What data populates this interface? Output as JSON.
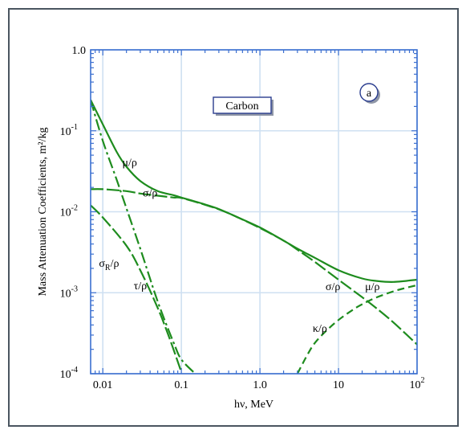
{
  "chart_data": {
    "type": "line",
    "title_box": "Carbon",
    "panel_label": "a",
    "xlabel": "hν, MeV",
    "ylabel": "Mass Attenuation Coefficients, m²/kg",
    "x_scale": "log",
    "y_scale": "log",
    "xlim": [
      0.007,
      100
    ],
    "ylim": [
      0.0001,
      1.0
    ],
    "grid": true,
    "x_ticks": [
      {
        "value": 0.01,
        "label": "0.01"
      },
      {
        "value": 0.1,
        "label": "0.1"
      },
      {
        "value": 1,
        "label": "1.0"
      },
      {
        "value": 10,
        "label": "10"
      },
      {
        "value": 100,
        "label": "10",
        "sup": "2"
      }
    ],
    "y_ticks": [
      {
        "value": 1.0,
        "label": "1.0",
        "sup": ""
      },
      {
        "value": 0.1,
        "label": "10",
        "sup": "-1"
      },
      {
        "value": 0.01,
        "label": "10",
        "sup": "-2"
      },
      {
        "value": 0.001,
        "label": "10",
        "sup": "-3"
      },
      {
        "value": 0.0001,
        "label": "10",
        "sup": "-4"
      }
    ],
    "series": [
      {
        "name": "μ/ρ",
        "style": "solid",
        "x": [
          0.007,
          0.01,
          0.015,
          0.02,
          0.03,
          0.05,
          0.08,
          0.1,
          0.2,
          0.3,
          0.5,
          1,
          2,
          3,
          5,
          10,
          20,
          30,
          50,
          100
        ],
        "y": [
          0.24,
          0.12,
          0.055,
          0.036,
          0.024,
          0.018,
          0.016,
          0.015,
          0.0123,
          0.0108,
          0.0087,
          0.0064,
          0.0044,
          0.0035,
          0.0027,
          0.0019,
          0.0015,
          0.0014,
          0.00136,
          0.00145
        ]
      },
      {
        "name": "σ/ρ",
        "style": "long-dash",
        "x": [
          0.007,
          0.01,
          0.02,
          0.03,
          0.05,
          0.08,
          0.1,
          0.2,
          0.3,
          0.5,
          1,
          2,
          3,
          5,
          10,
          20,
          30,
          50,
          100
        ],
        "y": [
          0.019,
          0.019,
          0.018,
          0.0168,
          0.0158,
          0.015,
          0.0148,
          0.0122,
          0.0107,
          0.0087,
          0.0063,
          0.0044,
          0.0034,
          0.0024,
          0.00145,
          0.00088,
          0.00065,
          0.00043,
          0.00023
        ]
      },
      {
        "name": "σR/ρ",
        "style": "long-dash",
        "x": [
          0.007,
          0.01,
          0.02,
          0.03,
          0.05,
          0.07,
          0.1
        ],
        "y": [
          0.012,
          0.0085,
          0.0038,
          0.0019,
          0.00065,
          0.00028,
          0.000105
        ]
      },
      {
        "name": "τ/ρ",
        "style": "dash-dot",
        "x": [
          0.007,
          0.01,
          0.015,
          0.02,
          0.03,
          0.05,
          0.08,
          0.1,
          0.15
        ],
        "y": [
          0.24,
          0.075,
          0.025,
          0.011,
          0.0035,
          0.00078,
          0.00024,
          0.00015,
          0.0001
        ]
      },
      {
        "name": "κ/ρ",
        "style": "dashed",
        "x": [
          3,
          4,
          5,
          7,
          10,
          15,
          20,
          30,
          50,
          70,
          100
        ],
        "y": [
          0.0001,
          0.00017,
          0.00024,
          0.00034,
          0.00046,
          0.00061,
          0.00072,
          0.00087,
          0.00104,
          0.00114,
          0.00124
        ]
      }
    ],
    "curve_labels": [
      {
        "text": "μ/ρ",
        "x": 0.022,
        "y": 0.037
      },
      {
        "text": "σ/ρ",
        "x": 0.04,
        "y": 0.0155
      },
      {
        "text": "σ",
        "sub": "R",
        "tail": "/ρ",
        "x": 0.012,
        "y": 0.0021
      },
      {
        "text": "τ/ρ",
        "x": 0.03,
        "y": 0.0011
      },
      {
        "text": "σ/ρ",
        "x": 8.5,
        "y": 0.00108
      },
      {
        "text": "μ/ρ",
        "x": 27,
        "y": 0.00108
      },
      {
        "text": "κ/ρ",
        "x": 5.8,
        "y": 0.00033
      }
    ],
    "colors": {
      "curve": "#1e8c1e",
      "grid": "#cfe0f2",
      "axis": "#3b6fd0",
      "frame": "#4a5560",
      "label_box": "#2a3d8f"
    }
  }
}
